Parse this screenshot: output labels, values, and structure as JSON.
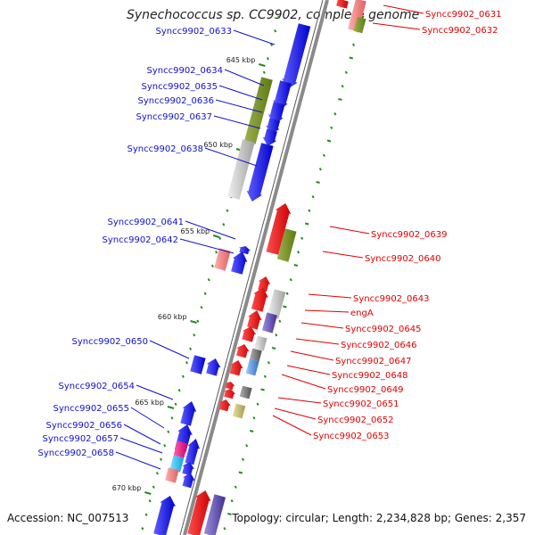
{
  "title": "Synechococcus sp. CC9902, complete genome",
  "footer": {
    "accession": "Accession: NC_007513",
    "summary": "Topology: circular; Length: 2,234,828 bp; Genes: 2,357"
  },
  "colors": {
    "forward": "#0000ee",
    "reverse": "#ee0000",
    "forward_label": "#1010d0",
    "reverse_label": "#e00000",
    "backbone": "#8a8a8a",
    "ruler_tick": "#228b22"
  },
  "kbp_marks": [
    "645 kbp",
    "650 kbp",
    "655 kbp",
    "660 kbp",
    "665 kbp",
    "670 kbp"
  ],
  "forward_labels": [
    "Syncc9902_0633",
    "Syncc9902_0634",
    "Syncc9902_0635",
    "Syncc9902_0636",
    "Syncc9902_0637",
    "Syncc9902_0638",
    "Syncc9902_0641",
    "Syncc9902_0642",
    "Syncc9902_0650",
    "Syncc9902_0654",
    "Syncc9902_0655",
    "Syncc9902_0656",
    "Syncc9902_0657",
    "Syncc9902_0658"
  ],
  "reverse_labels": [
    "Syncc9902_0631",
    "Syncc9902_0632",
    "Syncc9902_0639",
    "Syncc9902_0640",
    "Syncc9902_0643",
    "engA",
    "Syncc9902_0645",
    "Syncc9902_0646",
    "Syncc9902_0647",
    "Syncc9902_0648",
    "Syncc9902_0649",
    "Syncc9902_0651",
    "Syncc9902_0652",
    "Syncc9902_0653"
  ]
}
